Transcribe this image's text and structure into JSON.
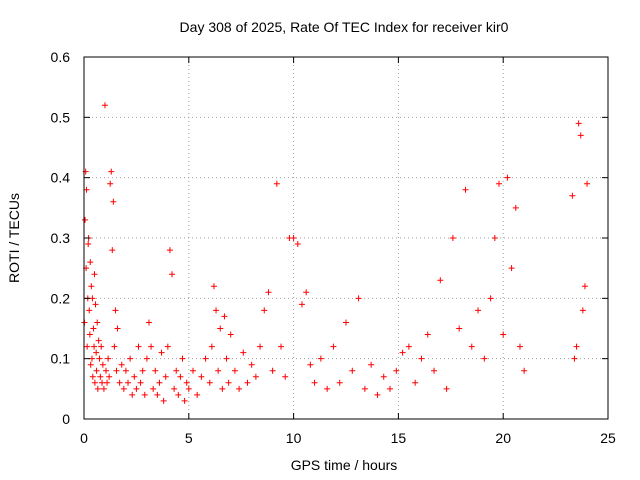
{
  "chart_data": {
    "type": "scatter",
    "title": "Day 308 of 2025, Rate Of TEC Index for receiver kir0",
    "xlabel": "GPS time / hours",
    "ylabel": "ROTI / TECUs",
    "xlim": [
      0,
      25
    ],
    "ylim": [
      0,
      0.6
    ],
    "xticks": [
      0,
      5,
      10,
      15,
      20,
      25
    ],
    "yticks": [
      0,
      0.1,
      0.2,
      0.3,
      0.4,
      0.5,
      0.6
    ],
    "xtick_labels": [
      "0",
      "5",
      "10",
      "15",
      "20",
      "25"
    ],
    "ytick_labels": [
      "0",
      "0.1",
      "0.2",
      "0.3",
      "0.4",
      "0.5",
      "0.6"
    ],
    "grid": true,
    "grid_style": "dotted",
    "marker": "+",
    "color": "#ff0000",
    "series": [
      {
        "x": [
          0.02,
          0.05,
          0.08,
          0.1,
          0.12,
          0.15,
          0.18,
          0.2,
          0.22,
          0.25,
          0.28,
          0.3,
          0.32,
          0.35,
          0.38,
          0.4,
          0.42,
          0.45,
          0.48,
          0.5,
          0.52,
          0.55,
          0.58,
          0.6,
          0.63,
          0.66,
          0.7,
          0.74,
          0.78,
          0.82,
          0.86,
          0.9,
          0.95,
          1.0,
          1.05,
          1.1,
          1.15,
          1.2,
          1.25,
          1.3,
          1.35,
          1.4,
          1.45,
          1.5,
          1.55,
          1.6,
          1.7,
          1.8,
          1.9,
          2.0,
          2.1,
          2.2,
          2.3,
          2.4,
          2.5,
          2.6,
          2.7,
          2.8,
          2.9,
          3.0,
          3.1,
          3.2,
          3.3,
          3.4,
          3.5,
          3.6,
          3.7,
          3.8,
          3.9,
          4.0,
          4.1,
          4.2,
          4.3,
          4.4,
          4.5,
          4.6,
          4.7,
          4.8,
          4.9,
          5.0,
          5.2,
          5.4,
          5.6,
          5.8,
          6.0,
          6.1,
          6.2,
          6.3,
          6.4,
          6.5,
          6.6,
          6.7,
          6.8,
          6.9,
          7.0,
          7.2,
          7.4,
          7.6,
          7.8,
          8.0,
          8.2,
          8.4,
          8.6,
          8.8,
          9.0,
          9.2,
          9.4,
          9.6,
          9.8,
          10.0,
          10.2,
          10.4,
          10.6,
          10.8,
          11.0,
          11.3,
          11.6,
          11.9,
          12.2,
          12.5,
          12.8,
          13.1,
          13.4,
          13.7,
          14.0,
          14.3,
          14.6,
          14.9,
          15.2,
          15.5,
          15.8,
          16.1,
          16.4,
          16.7,
          17.0,
          17.3,
          17.6,
          17.9,
          18.2,
          18.5,
          18.8,
          19.1,
          19.4,
          19.6,
          19.8,
          20.0,
          20.2,
          20.4,
          20.6,
          20.8,
          21.0,
          23.3,
          23.4,
          23.5,
          23.6,
          23.7,
          23.8,
          23.9,
          24.0
        ],
        "y": [
          0.16,
          0.33,
          0.41,
          0.25,
          0.38,
          0.12,
          0.2,
          0.29,
          0.3,
          0.18,
          0.14,
          0.26,
          0.09,
          0.22,
          0.1,
          0.2,
          0.07,
          0.15,
          0.12,
          0.24,
          0.06,
          0.19,
          0.11,
          0.08,
          0.16,
          0.05,
          0.13,
          0.1,
          0.07,
          0.12,
          0.06,
          0.09,
          0.05,
          0.52,
          0.08,
          0.06,
          0.1,
          0.07,
          0.39,
          0.41,
          0.28,
          0.36,
          0.12,
          0.18,
          0.08,
          0.15,
          0.06,
          0.09,
          0.05,
          0.08,
          0.06,
          0.1,
          0.04,
          0.07,
          0.05,
          0.12,
          0.06,
          0.08,
          0.04,
          0.1,
          0.16,
          0.12,
          0.05,
          0.08,
          0.04,
          0.06,
          0.11,
          0.03,
          0.07,
          0.12,
          0.28,
          0.24,
          0.05,
          0.08,
          0.04,
          0.07,
          0.1,
          0.03,
          0.06,
          0.05,
          0.08,
          0.04,
          0.07,
          0.1,
          0.06,
          0.12,
          0.22,
          0.18,
          0.08,
          0.15,
          0.05,
          0.17,
          0.1,
          0.06,
          0.14,
          0.08,
          0.05,
          0.11,
          0.06,
          0.09,
          0.07,
          0.12,
          0.18,
          0.21,
          0.08,
          0.39,
          0.12,
          0.07,
          0.3,
          0.3,
          0.29,
          0.19,
          0.21,
          0.09,
          0.06,
          0.1,
          0.05,
          0.12,
          0.06,
          0.16,
          0.08,
          0.2,
          0.05,
          0.09,
          0.04,
          0.07,
          0.05,
          0.08,
          0.11,
          0.12,
          0.06,
          0.1,
          0.14,
          0.08,
          0.23,
          0.05,
          0.3,
          0.15,
          0.38,
          0.12,
          0.18,
          0.1,
          0.2,
          0.3,
          0.39,
          0.14,
          0.4,
          0.25,
          0.35,
          0.12,
          0.08,
          0.37,
          0.1,
          0.12,
          0.49,
          0.47,
          0.18,
          0.22,
          0.39
        ]
      }
    ]
  }
}
